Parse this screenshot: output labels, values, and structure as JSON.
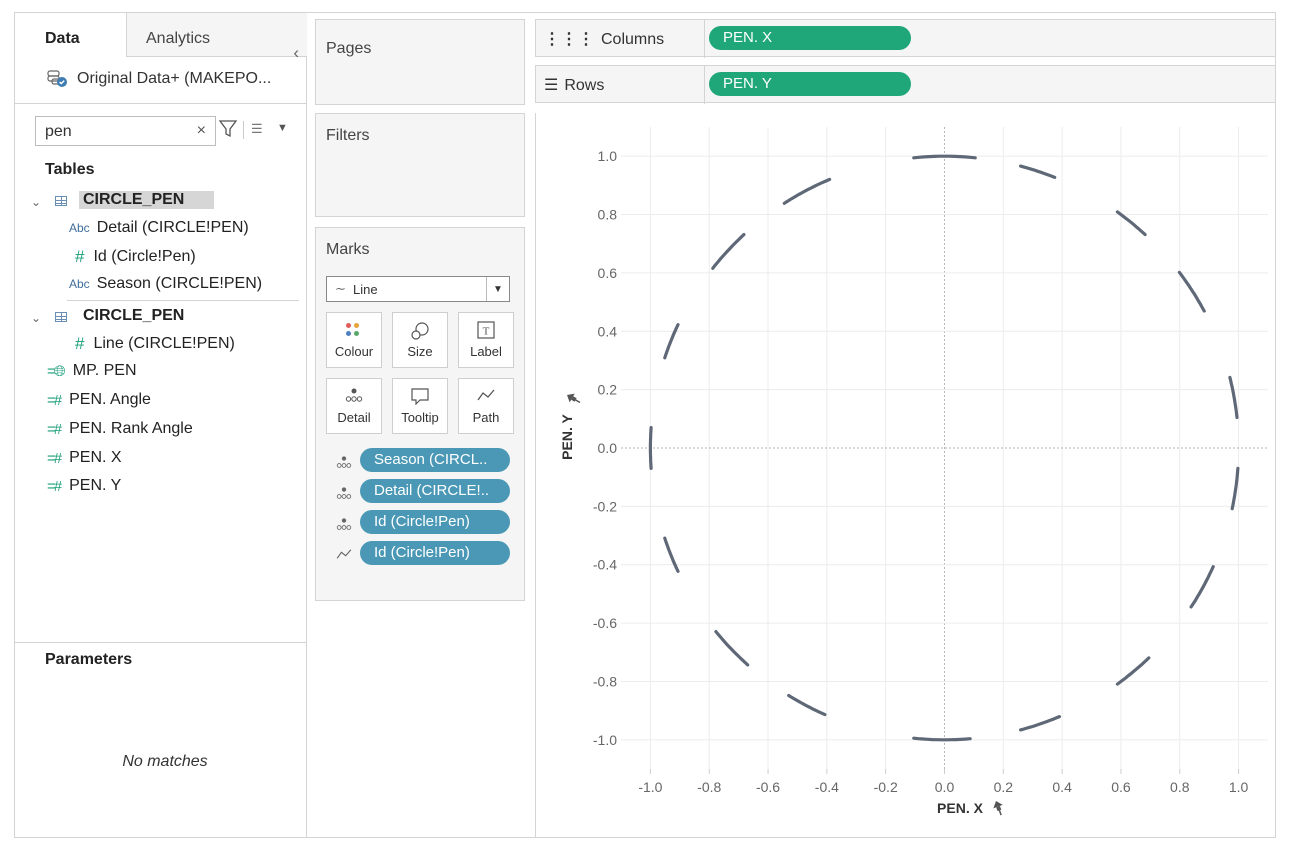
{
  "sidebar": {
    "tabs": {
      "data": "Data",
      "analytics": "Analytics"
    },
    "collapse_icon": "chevron-left-icon",
    "datasource": "Original Data+ (MAKEPO...",
    "search": {
      "value": "pen",
      "clear": "×"
    },
    "tables_title": "Tables",
    "table1": {
      "name": "CIRCLE_PEN",
      "fields": [
        {
          "type": "Abc",
          "name": "Detail (CIRCLE!PEN)"
        },
        {
          "type": "#",
          "name": "Id (Circle!Pen)"
        },
        {
          "type": "Abc",
          "name": "Season (CIRCLE!PEN)"
        }
      ]
    },
    "table2": {
      "name": "CIRCLE_PEN",
      "fields": [
        {
          "type": "#",
          "name": "Line (CIRCLE!PEN)"
        }
      ]
    },
    "calc_fields": [
      {
        "type": "geo",
        "name": "MP. PEN"
      },
      {
        "type": "calc",
        "name": "PEN. Angle"
      },
      {
        "type": "calc",
        "name": "PEN. Rank Angle"
      },
      {
        "type": "calc",
        "name": "PEN. X"
      },
      {
        "type": "calc",
        "name": "PEN. Y"
      }
    ],
    "parameters_title": "Parameters",
    "no_matches": "No matches"
  },
  "cards": {
    "pages": "Pages",
    "filters": "Filters",
    "marks": {
      "title": "Marks",
      "mark_type": "Line",
      "buttons": [
        "Colour",
        "Size",
        "Label",
        "Detail",
        "Tooltip",
        "Path"
      ],
      "pills": [
        {
          "icon": "detail-icon",
          "label": "Season (CIRCL.."
        },
        {
          "icon": "detail-icon",
          "label": "Detail (CIRCLE!.."
        },
        {
          "icon": "detail-icon",
          "label": "Id (Circle!Pen)"
        },
        {
          "icon": "path-icon",
          "label": "Id (Circle!Pen)"
        }
      ]
    }
  },
  "shelves": {
    "columns": {
      "label": "Columns",
      "pill": "PEN. X"
    },
    "rows": {
      "label": "Rows",
      "pill": "PEN. Y"
    }
  },
  "colors": {
    "pill_green": "#1fa779",
    "pill_blue": "#4a98b5",
    "line": "#5f6877"
  },
  "chart_data": {
    "type": "line",
    "xlabel": "PEN. X",
    "ylabel": "PEN. Y",
    "xlim": [
      -1.1,
      1.1
    ],
    "ylim": [
      -1.1,
      1.1
    ],
    "x_ticks": [
      "-1.0",
      "-0.8",
      "-0.6",
      "-0.4",
      "-0.2",
      "0.0",
      "0.2",
      "0.4",
      "0.6",
      "0.8",
      "1.0"
    ],
    "y_ticks": [
      "1.0",
      "0.8",
      "0.6",
      "0.4",
      "0.2",
      "0.0",
      "-0.2",
      "-0.4",
      "-0.6",
      "-0.8",
      "-1.0"
    ],
    "grid": true,
    "segments": [
      {
        "start_deg": -12,
        "end_deg": -4
      },
      {
        "start_deg": 6,
        "end_deg": 14
      },
      {
        "start_deg": 28,
        "end_deg": 37
      },
      {
        "start_deg": 47,
        "end_deg": 54
      },
      {
        "start_deg": 68,
        "end_deg": 75
      },
      {
        "start_deg": 84,
        "end_deg": 96
      },
      {
        "start_deg": 113,
        "end_deg": 123
      },
      {
        "start_deg": 133,
        "end_deg": 142
      },
      {
        "start_deg": 155,
        "end_deg": 162
      },
      {
        "start_deg": 176,
        "end_deg": 184
      },
      {
        "start_deg": 198,
        "end_deg": 205
      },
      {
        "start_deg": 219,
        "end_deg": 228
      },
      {
        "start_deg": 238,
        "end_deg": 246
      },
      {
        "start_deg": 264,
        "end_deg": 275
      },
      {
        "start_deg": 285,
        "end_deg": 293
      },
      {
        "start_deg": 306,
        "end_deg": 314
      },
      {
        "start_deg": 327,
        "end_deg": 336
      }
    ]
  }
}
